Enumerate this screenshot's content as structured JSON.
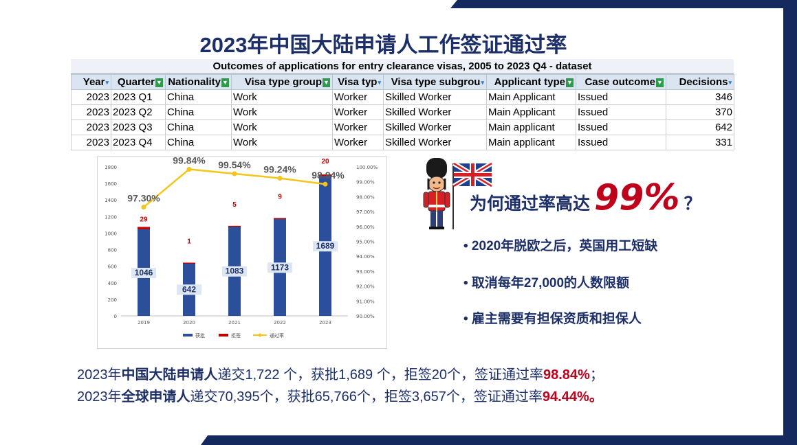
{
  "title": "2023年中国大陆申请人工作签证通过率",
  "table": {
    "caption": "Outcomes of applications for entry clearance visas, 2005 to 2023 Q4 - dataset",
    "headers": [
      "Year",
      "Quarter",
      "Nationality",
      "Visa type group",
      "Visa typ",
      "Visa type subgrou",
      "Applicant type",
      "Case outcome",
      "Decisions"
    ],
    "rows": [
      [
        "2023",
        "2023 Q1",
        "China",
        "Work",
        "Worker",
        "Skilled Worker",
        "Main Applicant",
        "Issued",
        "346"
      ],
      [
        "2023",
        "2023 Q2",
        "China",
        "Work",
        "Worker",
        "Skilled Worker",
        "Main Applicant",
        "Issued",
        "370"
      ],
      [
        "2023",
        "2023 Q3",
        "China",
        "Work",
        "Worker",
        "Skilled Worker",
        "Main applicant",
        "Issued",
        "642"
      ],
      [
        "2023",
        "2023 Q4",
        "China",
        "Work",
        "Worker",
        "Skilled Worker",
        "Main applicant",
        "Issued",
        "331"
      ]
    ]
  },
  "chart_data": {
    "type": "bar",
    "categories": [
      "2019",
      "2020",
      "2021",
      "2022",
      "2023"
    ],
    "series": [
      {
        "name": "获批",
        "values": [
          1046,
          642,
          1083,
          1173,
          1689
        ],
        "color": "#2b4f9b"
      },
      {
        "name": "拒签",
        "values": [
          29,
          1,
          5,
          9,
          20
        ],
        "color": "#c00000"
      },
      {
        "name": "通过率",
        "values": [
          97.3,
          99.84,
          99.54,
          99.24,
          98.84
        ],
        "color": "#f5c518",
        "axis": "right"
      }
    ],
    "rate_labels": [
      "97.30%",
      "99.84%",
      "99.54%",
      "99.24%",
      "98.84%"
    ],
    "y_left": {
      "min": 0,
      "max": 1800,
      "ticks": [
        "0",
        "200",
        "400",
        "600",
        "800",
        "1000",
        "1200",
        "1400",
        "1600",
        "1800"
      ]
    },
    "y_right": {
      "min": 90,
      "max": 100,
      "ticks": [
        "90.00%",
        "91.00%",
        "92.00%",
        "93.00%",
        "94.00%",
        "95.00%",
        "96.00%",
        "97.00%",
        "98.00%",
        "99.00%",
        "100.00%"
      ]
    },
    "legend_position": "bottom",
    "grid": false
  },
  "right": {
    "why_prefix": "为何通过率高达",
    "why_pct": "99%",
    "why_suffix": "？",
    "bullets": [
      "• 2020年脱欧之后，英国用工短缺",
      "• 取消每年27,000的人数限额",
      "• 雇主需要有担保资质和担保人"
    ]
  },
  "summary": {
    "line1": {
      "a": "2023年",
      "b": "中国大陆申请人",
      "c": "递交1,722 个，获批1,689 个，拒签20个，签证通过率",
      "d": "98.84%",
      "e": "；"
    },
    "line2": {
      "a": "2023年",
      "b": "全球申请人",
      "c": "递交70,395个，获批65,766个，拒签3,657个，签证通过率",
      "d": "94.44%。",
      "e": ""
    }
  }
}
